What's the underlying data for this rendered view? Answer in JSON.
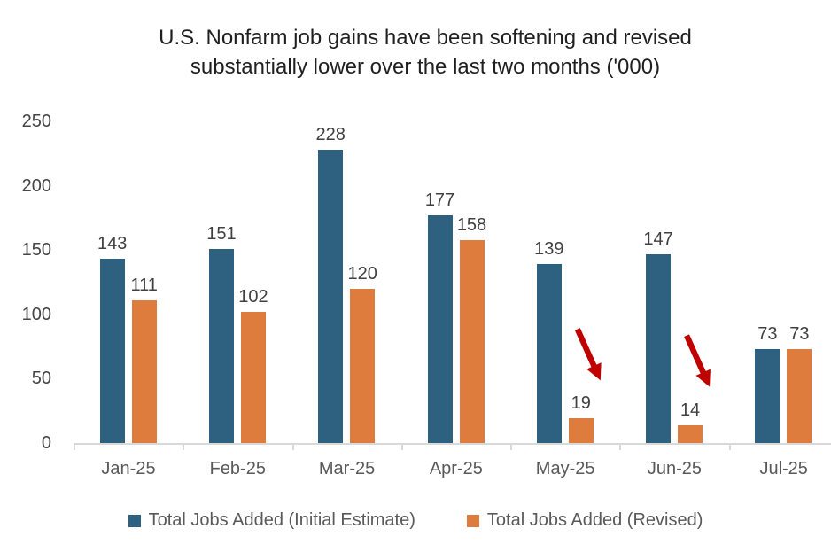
{
  "chart_data": {
    "type": "bar",
    "title": "U.S. Nonfarm job gains have been softening and revised substantially lower over the last two months ('000)",
    "title_lines": [
      "U.S. Nonfarm job gains have been softening and revised",
      "substantially lower over the last two months ('000)"
    ],
    "categories": [
      "Jan-25",
      "Feb-25",
      "Mar-25",
      "Apr-25",
      "May-25",
      "Jun-25",
      "Jul-25"
    ],
    "series": [
      {
        "name": "Total Jobs Added (Initial Estimate)",
        "color": "#2e617f",
        "values": [
          143,
          151,
          228,
          177,
          139,
          147,
          73
        ]
      },
      {
        "name": "Total Jobs Added (Revised)",
        "color": "#dd7c3c",
        "values": [
          111,
          102,
          120,
          158,
          19,
          14,
          73
        ]
      }
    ],
    "ylim": [
      0,
      250
    ],
    "y_ticks": [
      0,
      50,
      100,
      150,
      200,
      250
    ],
    "grid": false,
    "data_labels": true,
    "legend_position": "bottom",
    "annotations": {
      "arrows": [
        {
          "category": "May-25",
          "series": "Total Jobs Added (Revised)"
        },
        {
          "category": "Jun-25",
          "series": "Total Jobs Added (Revised)"
        }
      ],
      "color": "#c00000"
    }
  }
}
